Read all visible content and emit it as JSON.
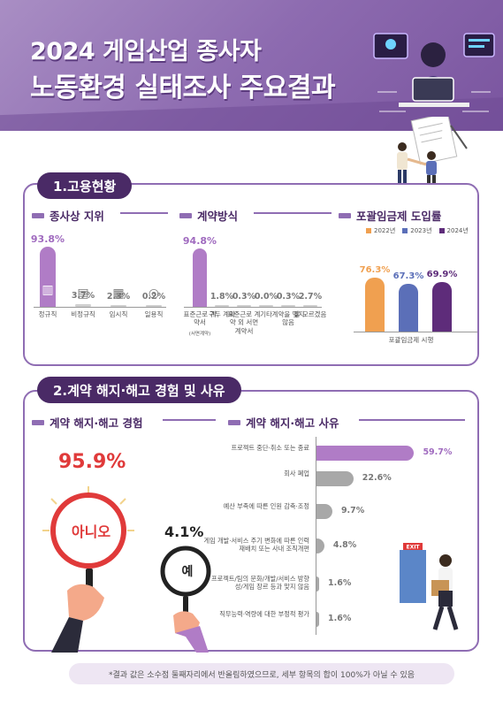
{
  "header": {
    "title_line1": "2024 게임산업 종사자",
    "title_line2": "노동환경 실태조사 주요결과"
  },
  "section1": {
    "title": "1.고용현황",
    "status": {
      "title": "종사상 지위",
      "chart_data": {
        "type": "bar",
        "categories": [
          "정규직",
          "비정규직",
          "임시직",
          "일용직"
        ],
        "values": [
          93.8,
          3.7,
          2.3,
          0.2
        ],
        "value_labels": [
          "93.8%",
          "3.7%",
          "2.3%",
          "0.2%"
        ],
        "icons": [
          "building-icon",
          "document-icon",
          "calendar-icon",
          "coins-icon"
        ],
        "colors": {
          "highlight": "#b07cc6",
          "base": "#cfcfcf"
        }
      }
    },
    "contract": {
      "title": "계약방식",
      "chart_data": {
        "type": "bar",
        "categories": [
          "표준근로 계약서",
          "구두 계약",
          "표준근로 계약 외 서면 계약서",
          "기타",
          "계약을 맺지 않음",
          "잘 모르겠음"
        ],
        "sub_label": "(서면계약)",
        "values": [
          94.8,
          1.8,
          0.3,
          0.0,
          0.3,
          2.7
        ],
        "value_labels": [
          "94.8%",
          "1.8%",
          "0.3%",
          "0.0%",
          "0.3%",
          "2.7%"
        ],
        "colors": {
          "highlight": "#b07cc6",
          "base": "#cfcfcf"
        }
      }
    },
    "inclusive_wage": {
      "title": "포괄임금제 도입률",
      "chart_data": {
        "type": "bar",
        "categories": [
          "포괄임금제 시행"
        ],
        "series": [
          {
            "name": "2022년",
            "values": [
              76.3
            ],
            "color": "#f0a050"
          },
          {
            "name": "2023년",
            "values": [
              67.3
            ],
            "color": "#5b6fb8"
          },
          {
            "name": "2024년",
            "values": [
              69.9
            ],
            "color": "#5e2c7a"
          }
        ],
        "value_labels": [
          "76.3%",
          "67.3%",
          "69.9%"
        ]
      }
    }
  },
  "section2": {
    "title": "2.계약 해지·해고 경험 및 사유",
    "experience": {
      "title": "계약 해지·해고 경험",
      "chart_data": {
        "type": "pie",
        "categories": [
          "아니오",
          "예"
        ],
        "values": [
          95.9,
          4.1
        ],
        "value_labels": [
          "95.9%",
          "4.1%"
        ]
      }
    },
    "reasons": {
      "title": "계약 해지·해고 사유",
      "chart_data": {
        "type": "bar",
        "orientation": "horizontal",
        "categories": [
          "프로젝트 중단·취소 또는 종료",
          "회사 폐업",
          "예산 부족에 따른 인원 감축·조정",
          "게임 개발·서비스 주기 변화에 따른 인력 재배치 또는 사내 조직개편",
          "프로젝트/팀의 문화/개발/서비스 방향성/게임 장르 등과 맞지 않음",
          "직무능력·역량에 대한 부정적 평가"
        ],
        "values": [
          59.7,
          22.6,
          9.7,
          4.8,
          1.6,
          1.6
        ],
        "value_labels": [
          "59.7%",
          "22.6%",
          "9.7%",
          "4.8%",
          "1.6%",
          "1.6%"
        ],
        "colors": {
          "highlight": "#b07cc6",
          "base": "#a8a8a8"
        }
      }
    },
    "exit_sign": "EXIT"
  },
  "footnote": "*결과 값은 소수점 둘째자리에서 반올림하였으므로, 세부 항목의 합이 100%가 아닐 수 있음"
}
